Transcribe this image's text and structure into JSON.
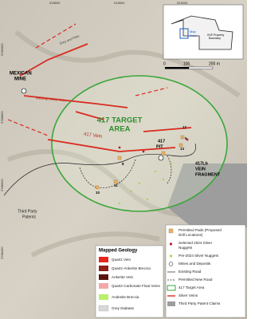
{
  "coords": {
    "top": [
      "518600",
      "518800",
      "519000"
    ],
    "left": [
      "3789000",
      "3788800",
      "3788600",
      "3788400"
    ]
  },
  "labels": {
    "mexican_mine": [
      "MEXICAN",
      "MINE"
    ],
    "road_name": "Grey and Flats",
    "mexican_vein": "Mexican Mine Vein",
    "target_area": [
      "417 TARGET",
      "AREA"
    ],
    "vein_417": "417 Vein",
    "pit": [
      "417",
      "PIT"
    ],
    "fragment": [
      "417Lb",
      "VEIN",
      "FRAGMENT"
    ],
    "patents": [
      "Third Party",
      "Patents"
    ],
    "pads": [
      "12",
      "8",
      "13",
      "10",
      "11",
      "5"
    ]
  },
  "inset": {
    "boundary": [
      "SVE Property",
      "Boundary"
    ],
    "map_area": [
      "Map",
      "Area"
    ]
  },
  "scale": [
    "0",
    "100",
    "200 m"
  ],
  "geology_legend": {
    "title": "Mapped Geology",
    "items": [
      "Quartz Vein",
      "Quartz-Ankerite Breccia",
      "Ankerite Vein",
      "Quartz-Carbonate Float Veins",
      "Andesite Breccia",
      "Grey Diabase"
    ]
  },
  "legend": {
    "items": [
      [
        "Permitted Pads (Proposed",
        "Drill Locations)"
      ],
      [
        "Selected 2024 Silver",
        "Nuggets"
      ],
      [
        "Pre-2024 Silver Nuggets"
      ],
      [
        "Mines and Deposits"
      ],
      [
        "Existing Road"
      ],
      [
        "Permitted New Road"
      ],
      [
        "417 Target Area"
      ],
      [
        "Silver Veins"
      ],
      [
        "Third Party Patent Claims"
      ]
    ]
  }
}
